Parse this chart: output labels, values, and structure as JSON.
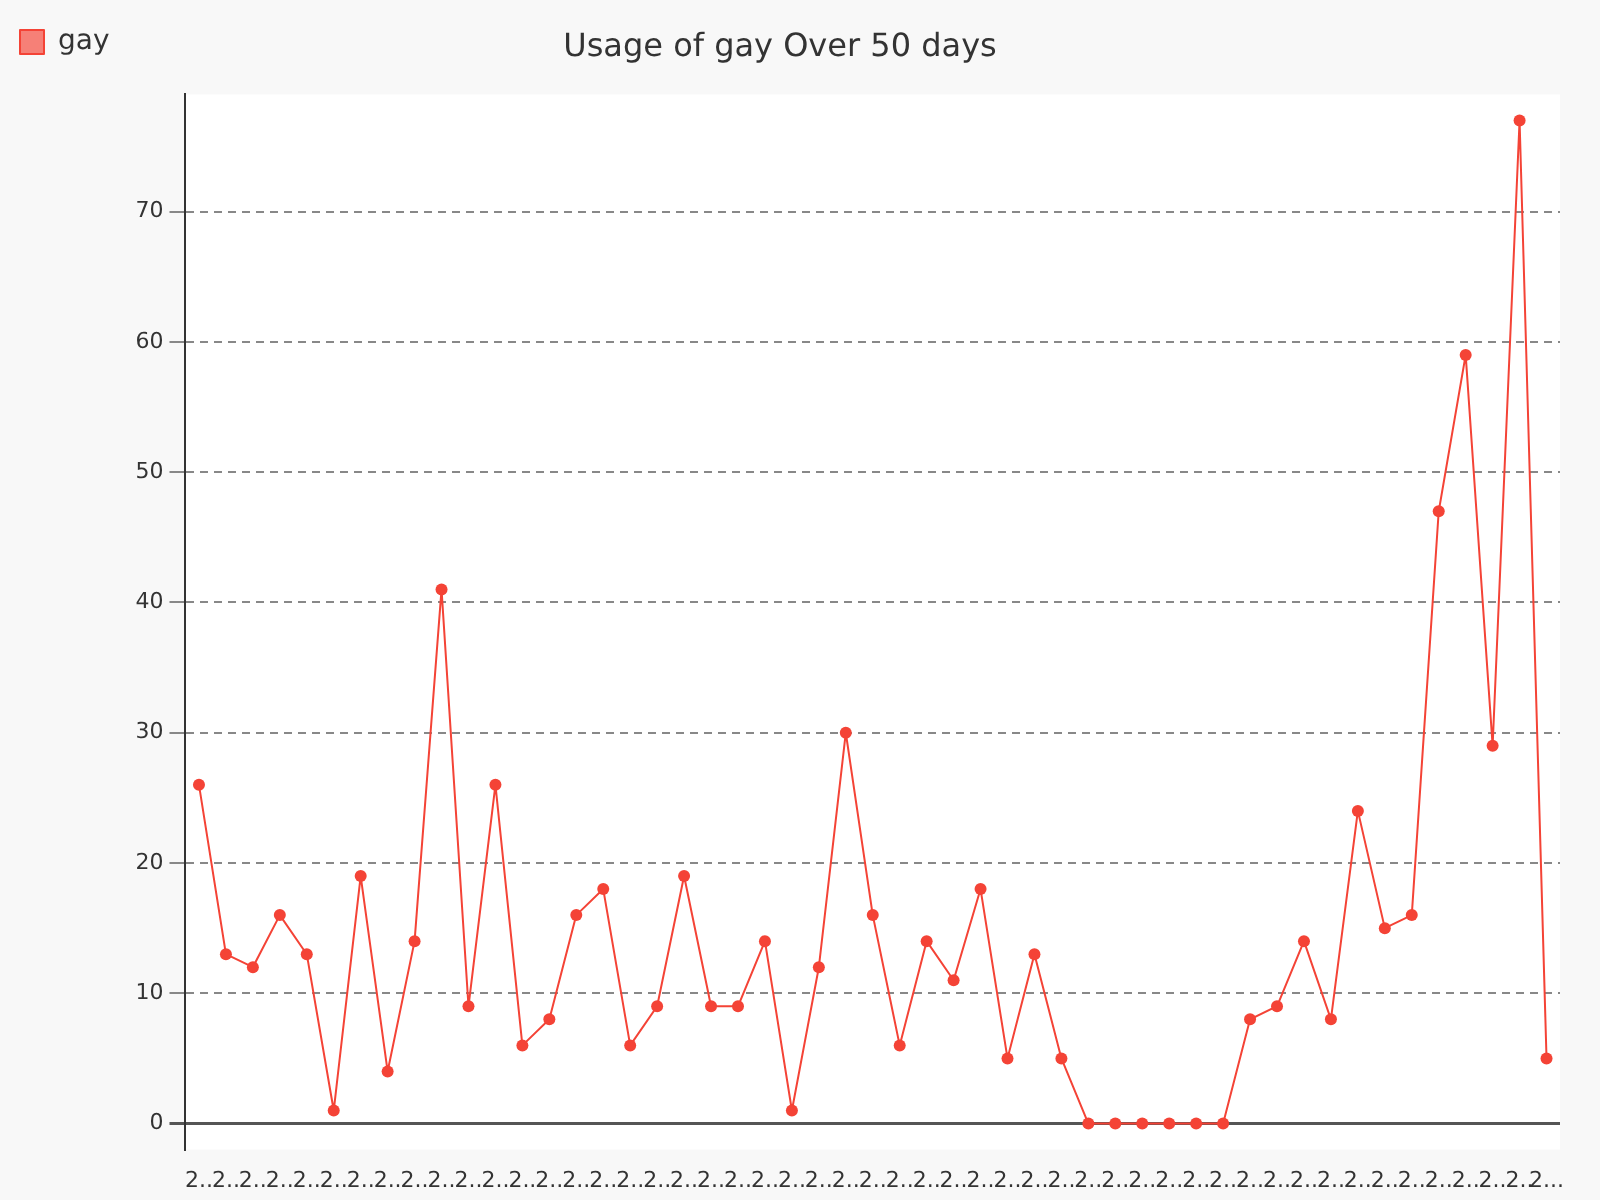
{
  "chart_data": {
    "type": "line",
    "title": "Usage of gay Over 50 days",
    "categories": [
      "2..",
      "2..",
      "2..",
      "2..",
      "2..",
      "2..",
      "2..",
      "2..",
      "2..",
      "2..",
      "2..",
      "2..",
      "2..",
      "2..",
      "2..",
      "2..",
      "2..",
      "2..",
      "2..",
      "2..",
      "2..",
      "2..",
      "2..",
      "2..",
      "2..",
      "2..",
      "2..",
      "2..",
      "2..",
      "2..",
      "2..",
      "2..",
      "2..",
      "2..",
      "2..",
      "2..",
      "2..",
      "2..",
      "2..",
      "2..",
      "2..",
      "2..",
      "2..",
      "2..",
      "2..",
      "2..",
      "2..",
      "2..",
      "2..",
      "2..",
      "2..."
    ],
    "series": [
      {
        "name": "gay",
        "color": "#f44336",
        "values": [
          26,
          13,
          12,
          16,
          13,
          1,
          19,
          4,
          14,
          41,
          9,
          26,
          6,
          8,
          16,
          18,
          6,
          9,
          19,
          9,
          9,
          14,
          1,
          12,
          30,
          16,
          6,
          14,
          11,
          18,
          5,
          13,
          5,
          0,
          0,
          0,
          0,
          0,
          0,
          8,
          9,
          14,
          8,
          24,
          15,
          16,
          47,
          59,
          29,
          77,
          5
        ]
      }
    ],
    "ylim": [
      -2,
      79
    ],
    "yticks": [
      0,
      10,
      20,
      30,
      40,
      50,
      60,
      70
    ],
    "grid": "y",
    "legend": "top left",
    "marker": "circle",
    "line_style": "solid"
  }
}
